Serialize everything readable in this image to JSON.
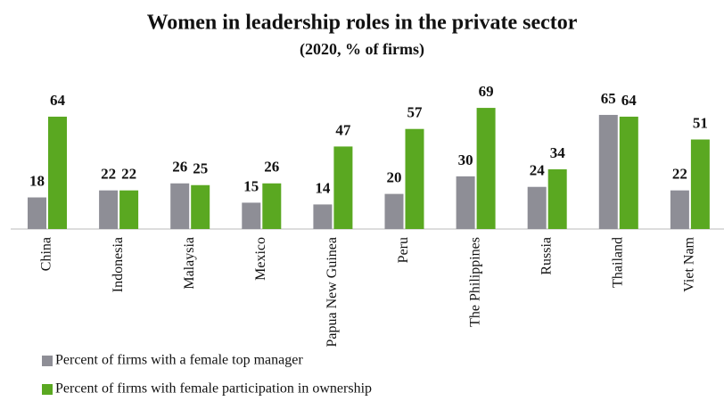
{
  "chart_data": {
    "type": "bar",
    "title": "Women in leadership roles in the private sector",
    "subtitle": "(2020, % of firms)",
    "categories": [
      "China",
      "Indonesia",
      "Malaysia",
      "Mexico",
      "Papua New Guinea",
      "Peru",
      "The Philippines",
      "Russia",
      "Thailand",
      "Viet Nam"
    ],
    "series": [
      {
        "name": "Percent of firms with a female top manager",
        "color": "#8e8e96",
        "values": [
          18,
          22,
          26,
          15,
          14,
          20,
          30,
          24,
          65,
          22
        ]
      },
      {
        "name": "Percent of firms with female participation in ownership",
        "color": "#5aa821",
        "values": [
          64,
          22,
          25,
          26,
          47,
          57,
          69,
          34,
          64,
          51
        ]
      }
    ],
    "legend": "bottom"
  }
}
